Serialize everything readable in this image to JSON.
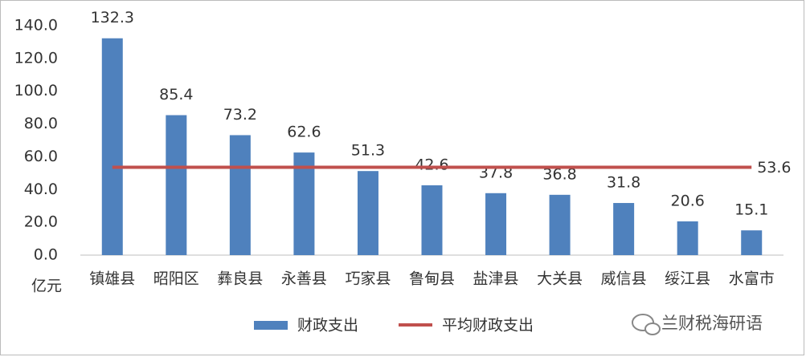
{
  "chart_data": {
    "type": "bar",
    "y_unit": "亿元",
    "categories": [
      "镇雄县",
      "昭阳区",
      "彝良县",
      "永善县",
      "巧家县",
      "鲁甸县",
      "盐津县",
      "大关县",
      "威信县",
      "绥江县",
      "水富市"
    ],
    "series": [
      {
        "name": "财政支出",
        "type": "bar",
        "color": "#4f81bd",
        "values": [
          132.3,
          85.4,
          73.2,
          62.6,
          51.3,
          42.6,
          37.8,
          36.8,
          31.8,
          20.6,
          15.1
        ]
      },
      {
        "name": "平均财政支出",
        "type": "line",
        "color": "#c0504d",
        "values": [
          53.6,
          53.6,
          53.6,
          53.6,
          53.6,
          53.6,
          53.6,
          53.6,
          53.6,
          53.6,
          53.6
        ]
      }
    ],
    "ylim": [
      0,
      140
    ],
    "yticks": [
      {
        "value": 0,
        "label": "0.0"
      },
      {
        "value": 20,
        "label": "20.0"
      },
      {
        "value": 40,
        "label": "40.0"
      },
      {
        "value": 60,
        "label": "60.0"
      },
      {
        "value": 80,
        "label": "80.0"
      },
      {
        "value": 100,
        "label": "100.0"
      },
      {
        "value": 120,
        "label": "120.0"
      },
      {
        "value": 140,
        "label": "140.0"
      }
    ],
    "grid": false,
    "legend": "bottom"
  },
  "watermark": "兰财税海研语"
}
